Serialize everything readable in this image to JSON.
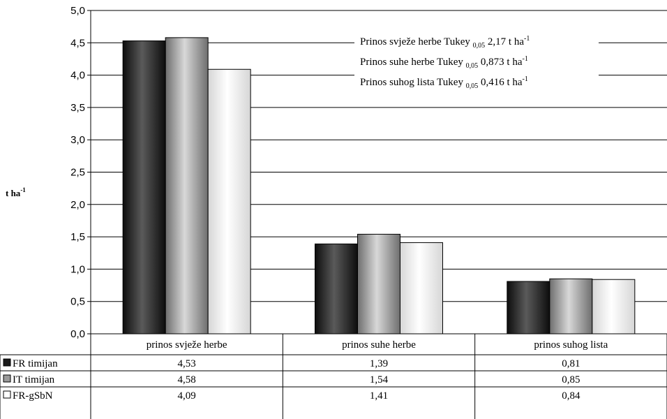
{
  "chart_data": {
    "type": "bar",
    "categories": [
      "prinos svježe herbe",
      "prinos suhe herbe",
      "prinos suhog lista"
    ],
    "series": [
      {
        "name": "FR timijan",
        "values": [
          4.53,
          1.39,
          0.81
        ],
        "labels": [
          "4,53",
          "1,39",
          "0,81"
        ],
        "color": "#2a2a2a"
      },
      {
        "name": "IT timijan",
        "values": [
          4.58,
          1.54,
          0.85
        ],
        "labels": [
          "4,58",
          "1,54",
          "0,85"
        ],
        "color": "#9a9a9a"
      },
      {
        "name": "FR-gSbN",
        "values": [
          4.09,
          1.41,
          0.84
        ],
        "labels": [
          "4,09",
          "1,41",
          "0,84"
        ],
        "color": "#f4f4f4"
      }
    ],
    "ylabel": "t ha",
    "ylabel_sup": "-1",
    "ylim": [
      0,
      5
    ],
    "yticks": [
      0,
      0.5,
      1,
      1.5,
      2,
      2.5,
      3,
      3.5,
      4,
      4.5,
      5
    ],
    "ytick_labels": [
      "0,0",
      "0,5",
      "1,0",
      "1,5",
      "2,0",
      "2,5",
      "3,0",
      "3,5",
      "4,0",
      "4,5",
      "5,0"
    ],
    "grid": true,
    "data_table": true,
    "annotations": [
      {
        "main": "Prinos svježe herbe Tukey ",
        "sub": "0,05",
        "value": "  2,17 t ha",
        "sup": "-1"
      },
      {
        "main": "Prinos suhe herbe Tukey ",
        "sub": "0,05",
        "value": "  0,873 t ha",
        "sup": "-1"
      },
      {
        "main": "Prinos suhog lista Tukey ",
        "sub": "0,05",
        "value": " 0,416 t ha",
        "sup": "-1"
      }
    ]
  }
}
